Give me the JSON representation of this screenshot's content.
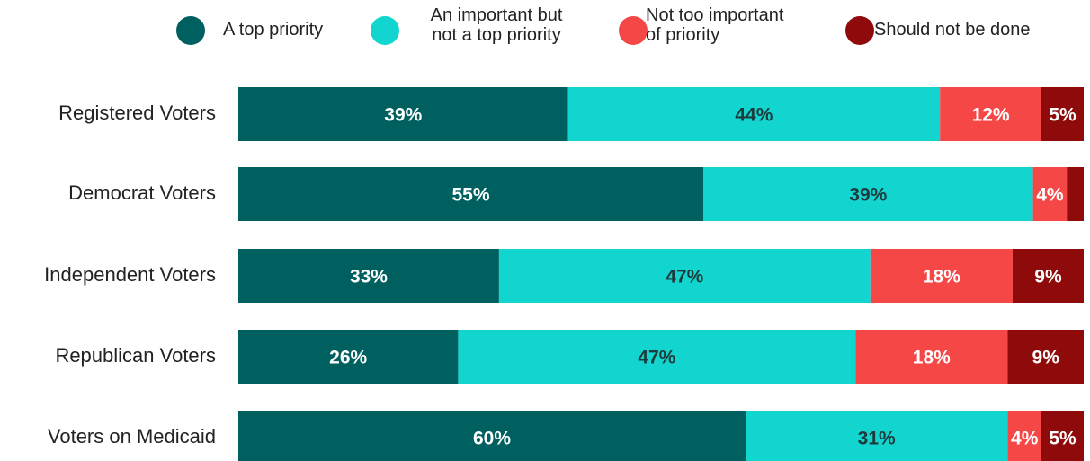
{
  "chart_data": {
    "type": "stacked-bar-horizontal",
    "categories": [
      "Registered Voters",
      "Democrat Voters",
      "Independent Voters",
      "Republican Voters",
      "Voters on Medicaid"
    ],
    "series": [
      {
        "name": "A top priority",
        "color": "#006060",
        "values": [
          39,
          55,
          33,
          26,
          60
        ],
        "value_labels": [
          "39%",
          "55%",
          "33%",
          "26%",
          "60%"
        ]
      },
      {
        "name": "An important but\nnot a top priority",
        "color": "#12d5cf",
        "values": [
          44,
          39,
          47,
          47,
          31
        ],
        "value_labels": [
          "44%",
          "39%",
          "47%",
          "47%",
          "31%"
        ]
      },
      {
        "name": "Not too important\nof priority",
        "color": "#f64747",
        "values": [
          12,
          4,
          18,
          18,
          4
        ],
        "value_labels": [
          "12%",
          "4%",
          "18%",
          "18%",
          "4%"
        ]
      },
      {
        "name": "Should not be done",
        "color": "#8f0a0a",
        "values": [
          5,
          2,
          9,
          9,
          5
        ],
        "value_labels": [
          "5%",
          null,
          "9%",
          "9%",
          "5%"
        ]
      }
    ],
    "legend": "top"
  }
}
